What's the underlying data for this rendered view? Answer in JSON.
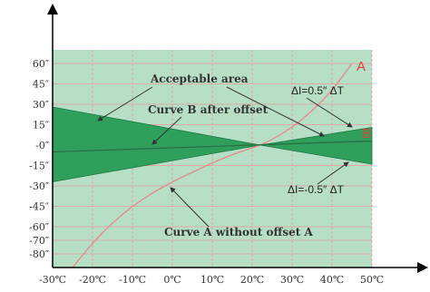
{
  "chart_data": {
    "type": "line",
    "xlabel": "",
    "ylabel": "",
    "x_ticks": [
      "-30℃",
      "-20℃",
      "-10℃",
      "0℃",
      "10℃",
      "20℃",
      "30℃",
      "40℃",
      "50℃"
    ],
    "y_ticks": [
      "60″",
      "45″",
      "30″",
      "15″",
      "-0″",
      "-15″",
      "-30″",
      "-45″",
      "-60″",
      "-70″",
      "-80″"
    ],
    "y_tick_values": [
      60,
      45,
      30,
      15,
      0,
      -15,
      -30,
      -45,
      -60,
      -70,
      -80
    ],
    "xlim": [
      -30,
      50
    ],
    "ylim": [
      -90,
      70
    ],
    "grid": true,
    "series": [
      {
        "name": "A",
        "kind": "curve",
        "x": [
          -25,
          -20,
          -15,
          -10,
          -5,
          0,
          5,
          10,
          15,
          20,
          22,
          25,
          30,
          35,
          40,
          45
        ],
        "y": [
          -90,
          -72,
          -57,
          -45,
          -35,
          -27,
          -20,
          -13,
          -7,
          -2,
          0,
          4,
          13,
          25,
          40,
          60
        ]
      },
      {
        "name": "B",
        "kind": "line",
        "x": [
          -30,
          50
        ],
        "y": [
          -5,
          3
        ]
      }
    ],
    "band_upper": {
      "x": [
        -30,
        22,
        50
      ],
      "y": [
        28,
        0,
        13
      ]
    },
    "band_lower": {
      "x": [
        -30,
        22,
        50
      ],
      "y": [
        -27,
        0,
        -14
      ]
    },
    "label_A": "A",
    "label_B": "B",
    "annotations": {
      "acceptable_area": "Acceptable area",
      "curve_b": "Curve B after offset",
      "curve_a": "Curve A without offset A",
      "delta_pos": "ΔI=0.5″ ΔT",
      "delta_neg": "ΔI=-0.5″ ΔT"
    }
  },
  "colors": {
    "plot_bg": "#b6dfc6",
    "band": "#2fa05c",
    "grid": "#e39a9a",
    "curve_a": "#e58a8a",
    "curve_b": "#2b6f44",
    "label_red": "#e0413a",
    "axis": "#000000",
    "arrow": "#333333"
  }
}
